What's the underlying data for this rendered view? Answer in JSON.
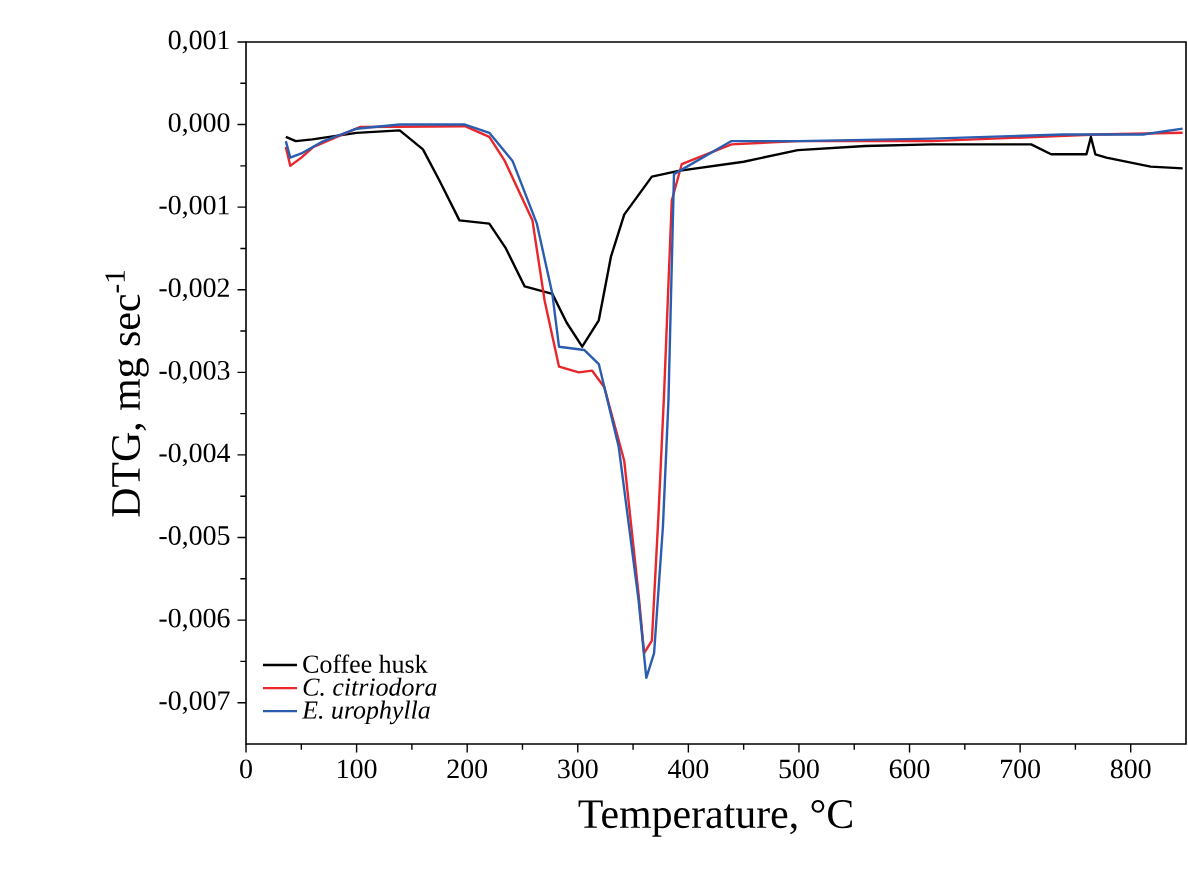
{
  "chart_data": {
    "type": "line",
    "xlabel": "Temperature, °C",
    "ylabel": "DTG, mg sec$^{-1}$",
    "xlim": [
      0,
      850
    ],
    "xticks": [
      0,
      100,
      200,
      300,
      400,
      500,
      600,
      700,
      800
    ],
    "ylim": [
      -0.0075,
      0.001
    ],
    "yticks": [
      {
        "value": 0.001,
        "label": "0,001"
      },
      {
        "value": 0,
        "label": "0,000"
      },
      {
        "value": -0.001,
        "label": "-0,001"
      },
      {
        "value": -0.002,
        "label": "-0,002"
      },
      {
        "value": -0.003,
        "label": "-0,003"
      },
      {
        "value": -0.004,
        "label": "-0,004"
      },
      {
        "value": -0.005,
        "label": "-0,005"
      },
      {
        "value": -0.006,
        "label": "-0,006"
      },
      {
        "value": -0.007,
        "label": "-0,007"
      }
    ],
    "legend": "bottom left",
    "grid": false,
    "marker": "none",
    "line_style": "solid",
    "series": [
      {
        "name": "Coffee husk",
        "color": "#000000",
        "x": [
          36,
          45,
          60,
          100,
          139,
          160,
          175,
          193,
          220,
          235,
          252,
          277,
          290,
          304,
          319,
          330,
          342,
          367,
          391,
          450,
          499,
          560,
          620,
          710,
          728,
          760,
          764,
          768,
          778,
          818,
          847
        ],
        "values": [
          -0.00015,
          -0.0002,
          -0.00018,
          -0.0001,
          -7e-05,
          -0.0003,
          -0.00068,
          -0.00116,
          -0.0012,
          -0.0015,
          -0.00196,
          -0.00205,
          -0.0024,
          -0.00269,
          -0.00237,
          -0.0016,
          -0.00109,
          -0.00063,
          -0.00056,
          -0.00045,
          -0.00031,
          -0.00026,
          -0.00024,
          -0.00024,
          -0.00036,
          -0.00036,
          -0.00015,
          -0.00036,
          -0.0004,
          -0.00051,
          -0.00053
        ]
      },
      {
        "name": "*C. citriodora*",
        "color": "#e8262b",
        "x": [
          36,
          40,
          50,
          61,
          103,
          198,
          220,
          234,
          259,
          270,
          283,
          301,
          313,
          324,
          342,
          355,
          360,
          367,
          373,
          378,
          385,
          394,
          439,
          499,
          620,
          769,
          847
        ],
        "values": [
          -0.00027,
          -0.0005,
          -0.0004,
          -0.00027,
          -3e-05,
          -2e-05,
          -0.00015,
          -0.00044,
          -0.00116,
          -0.00213,
          -0.00293,
          -0.003,
          -0.00298,
          -0.00318,
          -0.00407,
          -0.00569,
          -0.0064,
          -0.00625,
          -0.00472,
          -0.00327,
          -0.00092,
          -0.00048,
          -0.00024,
          -0.0002,
          -0.0002,
          -0.00012,
          -0.0001
        ]
      },
      {
        "name": "*E. urophylla*",
        "color": "#2a5db0",
        "x": [
          36,
          40,
          50,
          70,
          100,
          139,
          198,
          220,
          241,
          263,
          277,
          283,
          306,
          319,
          337,
          355,
          362,
          369,
          377,
          382,
          387,
          439,
          499,
          620,
          739,
          811,
          847
        ],
        "values": [
          -0.0002,
          -0.0004,
          -0.00035,
          -0.0002,
          -5e-05,
          0,
          0,
          -0.0001,
          -0.00044,
          -0.0012,
          -0.00205,
          -0.00269,
          -0.00273,
          -0.0029,
          -0.0039,
          -0.00576,
          -0.0067,
          -0.0064,
          -0.00487,
          -0.00334,
          -0.0006,
          -0.0002,
          -0.0002,
          -0.00017,
          -0.00012,
          -0.00012,
          -5e-05
        ]
      }
    ]
  }
}
